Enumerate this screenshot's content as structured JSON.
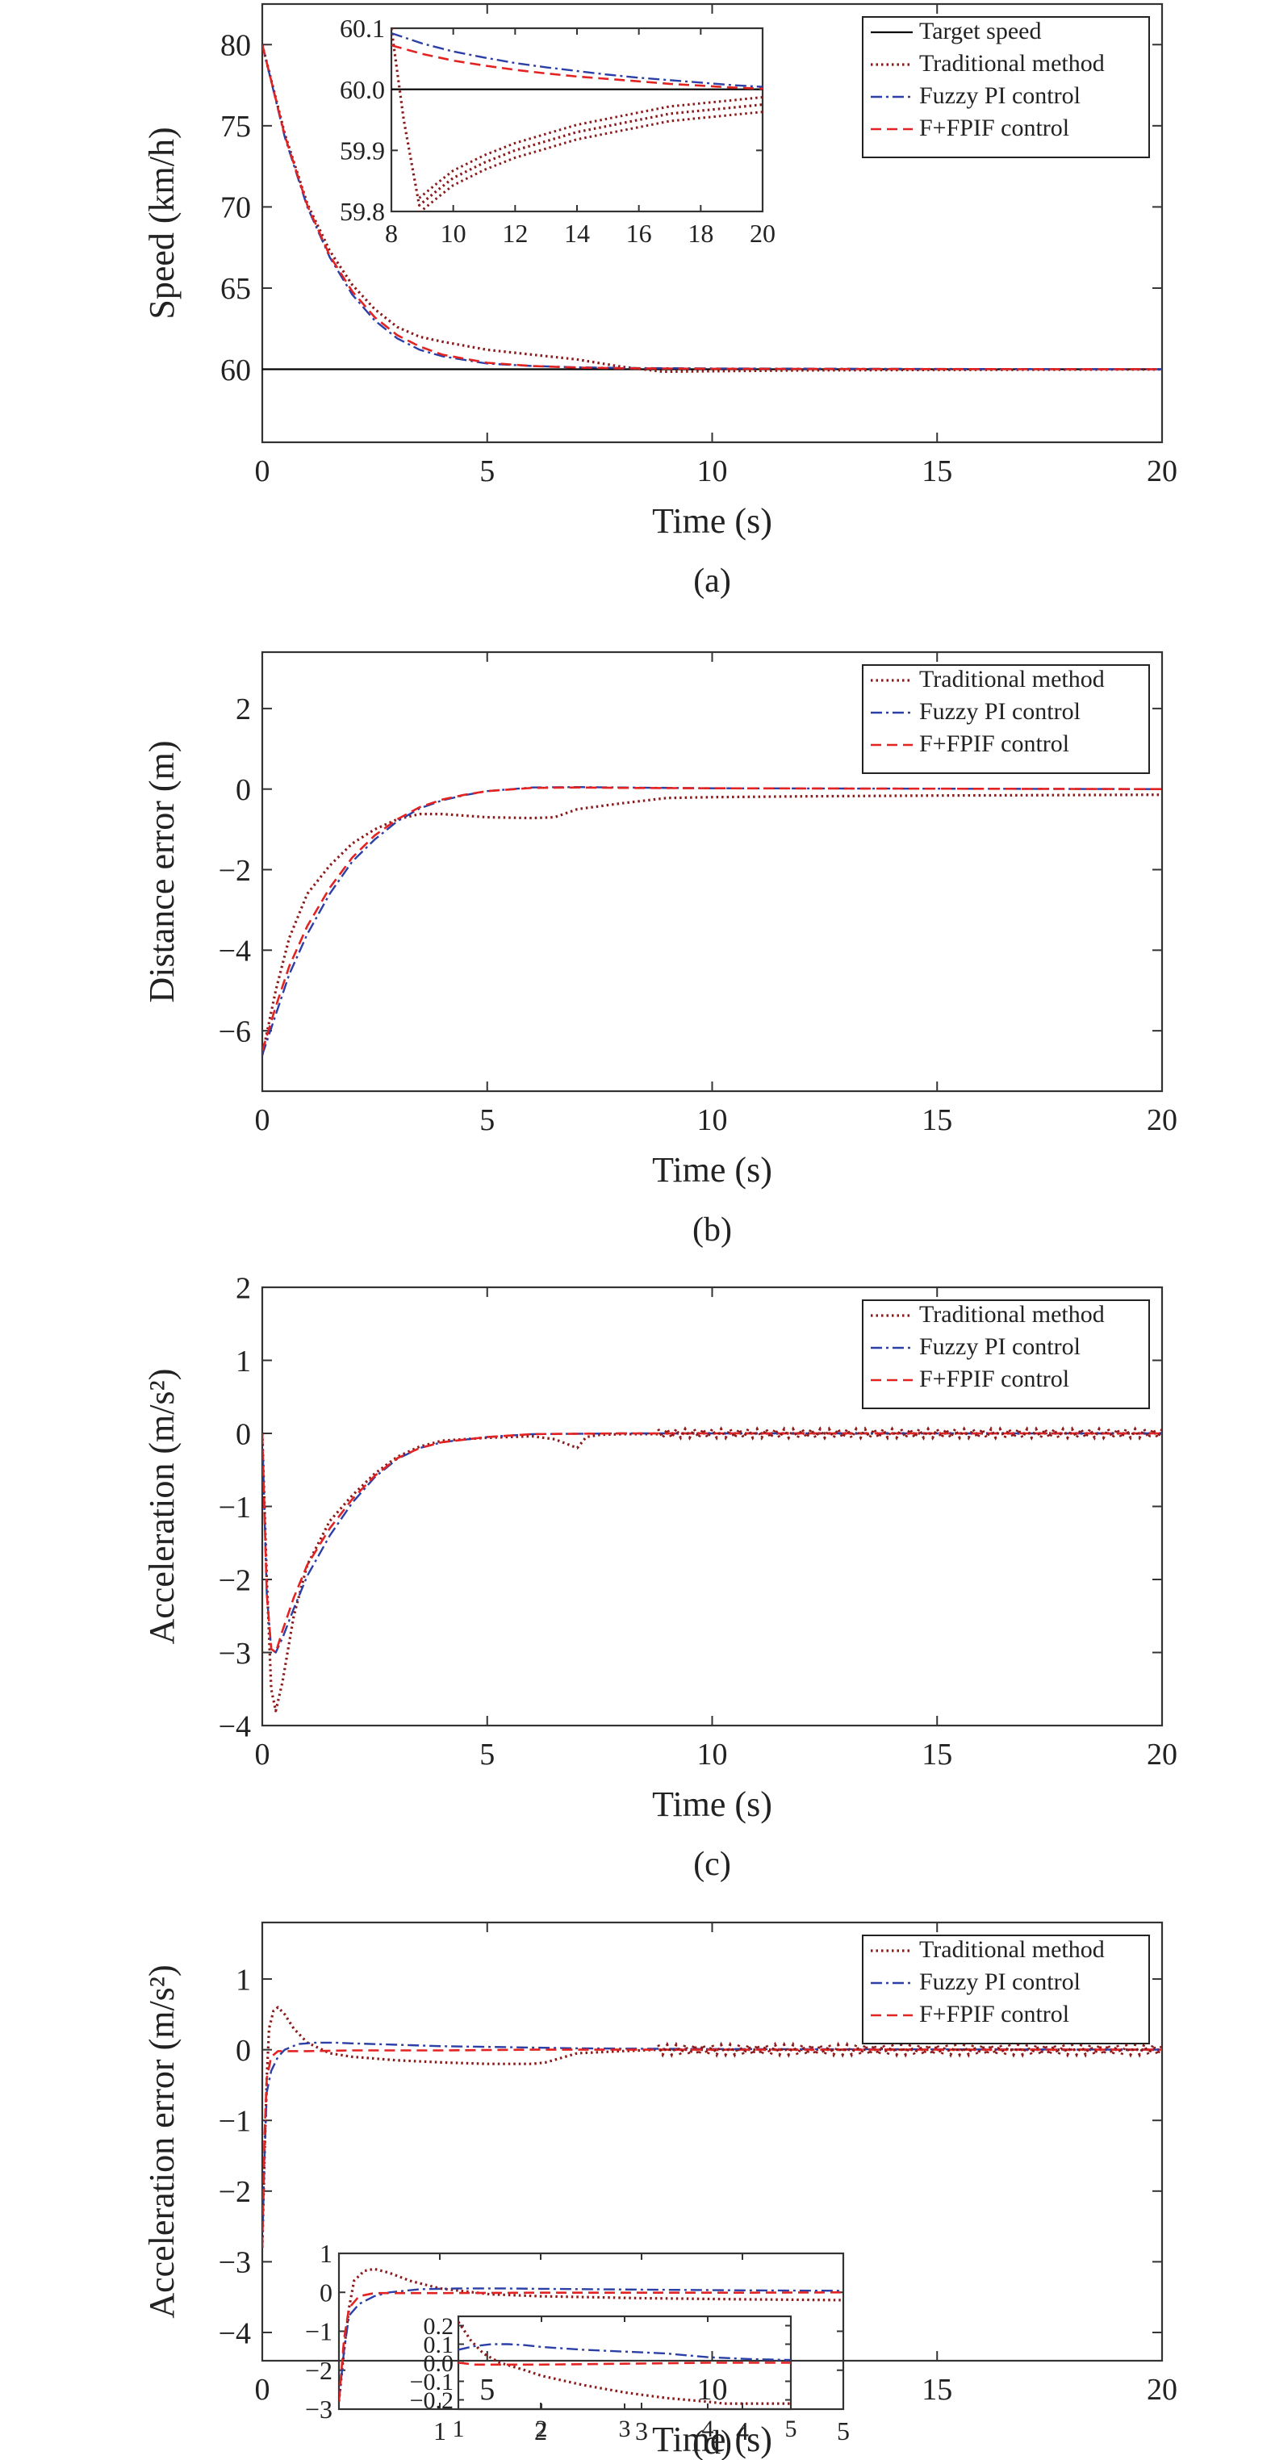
{
  "colors": {
    "target": "#000000",
    "traditional": "#8b1a1a",
    "fuzzy": "#2b3fa6",
    "ffpif": "#e32222"
  },
  "chart_data": [
    {
      "id": "a",
      "type": "line",
      "caption": "(a)",
      "xlabel": "Time (s)",
      "ylabel": "Speed (km/h)",
      "xlim": [
        0,
        20
      ],
      "ylim": [
        55.5,
        82.5
      ],
      "xticks": [
        0,
        5,
        10,
        15,
        20
      ],
      "yticks": [
        60,
        65,
        70,
        75,
        80
      ],
      "legend_position": "top-right",
      "series": [
        {
          "name": "Target speed",
          "style": "target",
          "x": [
            0,
            20
          ],
          "y": [
            60,
            60
          ]
        },
        {
          "name": "Traditional method",
          "style": "traditional",
          "x": [
            0,
            0.5,
            1,
            1.5,
            2,
            2.5,
            3,
            3.5,
            4,
            5,
            6,
            7,
            8,
            8.9,
            10,
            12,
            15,
            20
          ],
          "y": [
            80,
            74.5,
            70.2,
            67.3,
            65.2,
            63.7,
            62.6,
            62,
            61.7,
            61.2,
            60.9,
            60.6,
            60.15,
            59.85,
            59.88,
            59.93,
            59.96,
            59.99
          ]
        },
        {
          "name": "Fuzzy PI control",
          "style": "fuzzy",
          "x": [
            0,
            0.5,
            1,
            1.5,
            2,
            2.5,
            3,
            3.5,
            4,
            5,
            6,
            7,
            8,
            10,
            15,
            20
          ],
          "y": [
            80,
            74.3,
            70,
            66.9,
            64.6,
            63,
            61.9,
            61.2,
            60.8,
            60.35,
            60.2,
            60.12,
            60.08,
            60.05,
            60.02,
            60
          ]
        },
        {
          "name": "F+FPIF control",
          "style": "ffpif",
          "x": [
            0,
            0.5,
            1,
            1.5,
            2,
            2.5,
            3,
            3.5,
            4,
            5,
            6,
            7,
            8,
            10,
            15,
            20
          ],
          "y": [
            80,
            74.4,
            70.1,
            67,
            64.8,
            63.2,
            62.1,
            61.4,
            60.9,
            60.4,
            60.2,
            60.1,
            60.06,
            60.03,
            60.01,
            60
          ]
        }
      ],
      "inset": {
        "xlim": [
          8,
          20
        ],
        "ylim": [
          59.8,
          60.1
        ],
        "xticks": [
          8,
          10,
          12,
          14,
          16,
          18,
          20
        ],
        "yticks": [
          59.8,
          59.9,
          60.0,
          60.1
        ],
        "ytick_labels": [
          "59.8",
          "59.9",
          "60.0",
          "60.1"
        ],
        "series": [
          {
            "style": "target",
            "x": [
              8,
              20
            ],
            "y": [
              60,
              60
            ]
          },
          {
            "style": "traditional",
            "x": [
              8,
              8.4,
              8.9,
              9.5,
              10,
              11,
              12,
              13,
              14,
              15,
              16,
              17,
              18,
              19,
              20
            ],
            "y": [
              60.1,
              59.95,
              59.81,
              59.835,
              59.855,
              59.88,
              59.9,
              59.915,
              59.93,
              59.94,
              59.95,
              59.96,
              59.965,
              59.97,
              59.975
            ]
          },
          {
            "style": "fuzzy",
            "x": [
              8,
              9,
              10,
              11,
              12,
              13,
              14,
              15,
              16,
              17,
              18,
              19,
              20
            ],
            "y": [
              60.092,
              60.075,
              60.062,
              60.052,
              60.043,
              60.036,
              60.03,
              60.024,
              60.019,
              60.015,
              60.011,
              60.007,
              60.004
            ]
          },
          {
            "style": "ffpif",
            "x": [
              8,
              9,
              10,
              11,
              12,
              13,
              14,
              15,
              16,
              17,
              18,
              19,
              20
            ],
            "y": [
              60.072,
              60.058,
              60.047,
              60.039,
              60.032,
              60.026,
              60.021,
              60.017,
              60.013,
              60.009,
              60.006,
              60.003,
              60.001
            ]
          }
        ]
      }
    },
    {
      "id": "b",
      "type": "line",
      "caption": "(b)",
      "xlabel": "Time (s)",
      "ylabel": "Distance error (m)",
      "xlim": [
        0,
        20
      ],
      "ylim": [
        -7.5,
        3.4
      ],
      "xticks": [
        0,
        5,
        10,
        15,
        20
      ],
      "yticks": [
        -6,
        -4,
        -2,
        0,
        2
      ],
      "ytick_labels": [
        "−6",
        "−4",
        "−2",
        "0",
        "2"
      ],
      "legend_position": "top-right",
      "series": [
        {
          "name": "Traditional method",
          "style": "traditional",
          "x": [
            0,
            0.3,
            0.6,
            1,
            1.5,
            2,
            2.5,
            3,
            3.5,
            4,
            5,
            6,
            6.5,
            7,
            8,
            9,
            10,
            12,
            15,
            20
          ],
          "y": [
            -6.6,
            -5.0,
            -3.7,
            -2.6,
            -1.9,
            -1.35,
            -1.0,
            -0.75,
            -0.62,
            -0.62,
            -0.7,
            -0.72,
            -0.7,
            -0.5,
            -0.35,
            -0.22,
            -0.2,
            -0.18,
            -0.16,
            -0.14
          ]
        },
        {
          "name": "Fuzzy PI control",
          "style": "fuzzy",
          "x": [
            0,
            0.3,
            0.6,
            1,
            1.5,
            2,
            2.5,
            3,
            3.5,
            4,
            4.5,
            5,
            6,
            7,
            8,
            10,
            15,
            20
          ],
          "y": [
            -6.6,
            -5.6,
            -4.6,
            -3.6,
            -2.6,
            -1.8,
            -1.25,
            -0.8,
            -0.48,
            -0.28,
            -0.15,
            -0.05,
            0.04,
            0.05,
            0.04,
            0.02,
            0.01,
            0
          ]
        },
        {
          "name": "F+FPIF control",
          "style": "ffpif",
          "x": [
            0,
            0.3,
            0.6,
            1,
            1.5,
            2,
            2.5,
            3,
            3.5,
            4,
            4.5,
            5,
            6,
            7,
            8,
            10,
            15,
            20
          ],
          "y": [
            -6.5,
            -5.4,
            -4.4,
            -3.4,
            -2.45,
            -1.7,
            -1.15,
            -0.75,
            -0.45,
            -0.26,
            -0.14,
            -0.05,
            0.03,
            0.04,
            0.03,
            0.02,
            0.01,
            0
          ]
        }
      ]
    },
    {
      "id": "c",
      "type": "line",
      "caption": "(c)",
      "xlabel": "Time (s)",
      "ylabel": "Acceleration (m/s²)",
      "xlim": [
        0,
        20
      ],
      "ylim": [
        -4,
        2
      ],
      "xticks": [
        0,
        5,
        10,
        15,
        20
      ],
      "yticks": [
        -4,
        -3,
        -2,
        -1,
        0,
        1,
        2
      ],
      "ytick_labels": [
        "−4",
        "−3",
        "−2",
        "−1",
        "0",
        "1",
        "2"
      ],
      "legend_position": "top-right",
      "series": [
        {
          "name": "Traditional method",
          "style": "traditional",
          "x": [
            0,
            0.1,
            0.2,
            0.3,
            0.45,
            0.7,
            1,
            1.5,
            2,
            2.5,
            3,
            3.5,
            4,
            5,
            6,
            6.5,
            7,
            7.2,
            7.5,
            8,
            8.8,
            9,
            20
          ],
          "y": [
            0,
            -2.0,
            -3.5,
            -3.8,
            -3.4,
            -2.5,
            -1.8,
            -1.2,
            -0.85,
            -0.55,
            -0.32,
            -0.18,
            -0.1,
            -0.06,
            -0.04,
            -0.08,
            -0.2,
            -0.05,
            -0.02,
            -0.01,
            -0.01,
            0.0,
            0.0
          ]
        },
        {
          "name": "Fuzzy PI control",
          "style": "fuzzy",
          "x": [
            0,
            0.1,
            0.2,
            0.3,
            0.45,
            0.7,
            1,
            1.5,
            2,
            2.5,
            3,
            3.5,
            4,
            5,
            6,
            8,
            20
          ],
          "y": [
            0,
            -2.2,
            -2.95,
            -3.0,
            -2.8,
            -2.4,
            -1.95,
            -1.4,
            -0.95,
            -0.6,
            -0.35,
            -0.2,
            -0.12,
            -0.05,
            -0.01,
            0.0,
            0.0
          ]
        },
        {
          "name": "F+FPIF control",
          "style": "ffpif",
          "x": [
            0,
            0.1,
            0.2,
            0.3,
            0.45,
            0.7,
            1,
            1.5,
            2,
            2.5,
            3,
            3.5,
            4,
            5,
            6,
            8,
            20
          ],
          "y": [
            0,
            -2.2,
            -2.95,
            -3.0,
            -2.7,
            -2.25,
            -1.8,
            -1.3,
            -0.9,
            -0.58,
            -0.34,
            -0.2,
            -0.12,
            -0.05,
            -0.01,
            0.0,
            0.0
          ]
        }
      ]
    },
    {
      "id": "d",
      "type": "line",
      "caption": "(d)",
      "xlabel": "Time (s)",
      "ylabel": "Acceleration error (m/s²)",
      "xlim": [
        0,
        20
      ],
      "ylim": [
        -4.4,
        1.8
      ],
      "xticks": [
        0,
        5,
        10,
        15,
        20
      ],
      "yticks": [
        -4,
        -3,
        -2,
        -1,
        0,
        1
      ],
      "ytick_labels": [
        "−4",
        "−3",
        "−2",
        "−1",
        "0",
        "1"
      ],
      "legend_position": "top-right",
      "series": [
        {
          "name": "Traditional method",
          "style": "traditional",
          "x": [
            0,
            0.05,
            0.1,
            0.15,
            0.25,
            0.35,
            0.5,
            0.7,
            1,
            1.5,
            2,
            3,
            4,
            5,
            6,
            6.3,
            7,
            8,
            8.8,
            20
          ],
          "y": [
            -2.8,
            -1.5,
            -0.4,
            0.3,
            0.55,
            0.6,
            0.5,
            0.3,
            0.1,
            -0.05,
            -0.1,
            -0.15,
            -0.18,
            -0.2,
            -0.2,
            -0.18,
            -0.05,
            -0.02,
            0.0,
            0.0
          ]
        },
        {
          "name": "Fuzzy PI control",
          "style": "fuzzy",
          "x": [
            0,
            0.05,
            0.1,
            0.2,
            0.35,
            0.5,
            0.8,
            1.2,
            1.6,
            2,
            3,
            4,
            5,
            6,
            7,
            8,
            10,
            15,
            20
          ],
          "y": [
            -2.8,
            -1.5,
            -0.6,
            -0.3,
            -0.1,
            0.0,
            0.08,
            0.1,
            0.1,
            0.09,
            0.07,
            0.05,
            0.04,
            0.03,
            0.02,
            0.015,
            0.01,
            0.005,
            0.0
          ]
        },
        {
          "name": "F+FPIF control",
          "style": "ffpif",
          "x": [
            0,
            0.05,
            0.1,
            0.2,
            0.35,
            0.5,
            1,
            2,
            4,
            6,
            8,
            10,
            15,
            20
          ],
          "y": [
            -2.8,
            -1.2,
            -0.4,
            -0.1,
            -0.02,
            -0.02,
            -0.02,
            -0.01,
            -0.01,
            0.0,
            0.0,
            0.0,
            0.0,
            0.0
          ]
        }
      ],
      "inset": {
        "xlim": [
          0,
          5
        ],
        "ylim": [
          -3,
          1
        ],
        "xticks": [
          1,
          2,
          3,
          4,
          5
        ],
        "yticks": [
          -3,
          -2,
          -1,
          0,
          1
        ],
        "ytick_labels": [
          "−3",
          "−2",
          "−1",
          "0",
          "1"
        ],
        "series": [
          {
            "style": "traditional",
            "x": [
              0,
              0.05,
              0.1,
              0.15,
              0.25,
              0.35,
              0.5,
              0.7,
              1,
              1.5,
              2,
              3,
              4,
              5
            ],
            "y": [
              -2.8,
              -1.5,
              -0.4,
              0.3,
              0.55,
              0.6,
              0.5,
              0.3,
              0.1,
              -0.05,
              -0.1,
              -0.15,
              -0.18,
              -0.2
            ]
          },
          {
            "style": "fuzzy",
            "x": [
              0,
              0.05,
              0.1,
              0.2,
              0.35,
              0.5,
              0.8,
              1.2,
              1.6,
              2,
              3,
              4,
              5
            ],
            "y": [
              -2.8,
              -1.5,
              -0.6,
              -0.3,
              -0.1,
              0.0,
              0.08,
              0.1,
              0.1,
              0.09,
              0.07,
              0.05,
              0.04
            ]
          },
          {
            "style": "ffpif",
            "x": [
              0,
              0.05,
              0.1,
              0.2,
              0.35,
              0.5,
              1,
              2,
              3,
              4,
              5
            ],
            "y": [
              -2.8,
              -1.2,
              -0.4,
              -0.1,
              -0.02,
              -0.02,
              -0.02,
              -0.01,
              -0.01,
              -0.01,
              0.0
            ]
          }
        ],
        "inset": {
          "xlim": [
            1,
            5
          ],
          "ylim": [
            -0.25,
            0.25
          ],
          "xticks": [
            1,
            2,
            3,
            4,
            5
          ],
          "yticks": [
            -0.2,
            -0.1,
            0.0,
            0.1,
            0.2
          ],
          "ytick_labels": [
            "−0.2",
            "−0.1",
            "0.0",
            "0.1",
            "0.2"
          ],
          "series": [
            {
              "style": "traditional",
              "x": [
                1,
                1.15,
                1.3,
                1.5,
                1.8,
                2,
                2.5,
                3,
                3.5,
                4,
                4.2,
                5
              ],
              "y": [
                0.22,
                0.12,
                0.05,
                0.0,
                -0.04,
                -0.07,
                -0.12,
                -0.16,
                -0.19,
                -0.21,
                -0.22,
                -0.22
              ]
            },
            {
              "style": "fuzzy",
              "x": [
                1,
                1.2,
                1.4,
                1.6,
                1.8,
                2,
                2.5,
                3,
                3.5,
                4,
                4.5,
                5
              ],
              "y": [
                0.07,
                0.09,
                0.1,
                0.1,
                0.095,
                0.085,
                0.07,
                0.06,
                0.05,
                0.03,
                0.02,
                0.015
              ]
            },
            {
              "style": "ffpif",
              "x": [
                1,
                1.2,
                1.5,
                2,
                3,
                4,
                5
              ],
              "y": [
                0.0,
                -0.01,
                -0.01,
                -0.01,
                -0.005,
                0.0,
                0.0
              ]
            }
          ]
        }
      }
    }
  ]
}
